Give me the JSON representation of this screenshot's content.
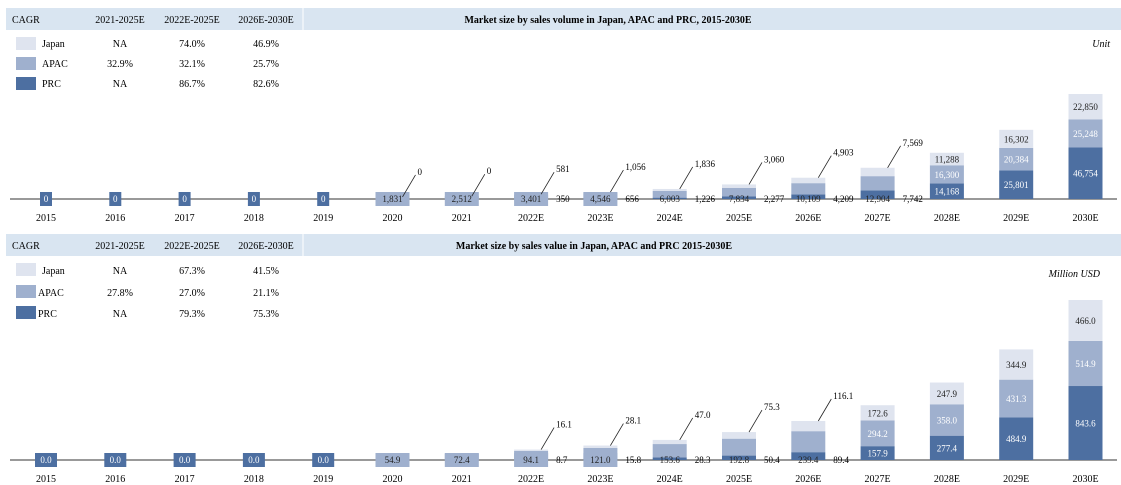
{
  "colors": {
    "japan": "#dfe4ef",
    "apac": "#9fb0ce",
    "prc": "#4d6fa1",
    "header_bg": "#d9e5f1"
  },
  "chart_data": [
    {
      "type": "bar",
      "stacked": true,
      "title": "Market size by sales volume in Japan, APAC and PRC, 2015-2030E",
      "unit": "Unit",
      "categories": [
        "2015",
        "2016",
        "2017",
        "2018",
        "2019",
        "2020",
        "2021",
        "2022E",
        "2023E",
        "2024E",
        "2025E",
        "2026E",
        "2027E",
        "2028E",
        "2029E",
        "2030E"
      ],
      "series": [
        {
          "name": "PRC",
          "values": [
            0,
            0,
            0,
            0,
            0,
            0,
            0,
            350,
            656,
            1226,
            2277,
            4209,
            7742,
            14168,
            25801,
            46754
          ]
        },
        {
          "name": "APAC",
          "values": [
            0,
            0,
            0,
            0,
            0,
            1831,
            2512,
            3401,
            4546,
            6003,
            7834,
            10109,
            12904,
            16300,
            20384,
            25248
          ]
        },
        {
          "name": "Japan",
          "values": [
            0,
            0,
            0,
            0,
            0,
            0,
            0,
            581,
            1056,
            1836,
            3060,
            4903,
            7569,
            11288,
            16302,
            22850
          ]
        }
      ],
      "labels": {
        "PRC": [
          "0",
          "0",
          "0",
          "0",
          "0",
          "",
          "",
          "350",
          "656",
          "1,226",
          "2,277",
          "4,209",
          "7,742",
          "14,168",
          "25,801",
          "46,754"
        ],
        "APAC": [
          "",
          "",
          "",
          "",
          "",
          "1,831",
          "2,512",
          "3,401",
          "4,546",
          "6,003",
          "7,834",
          "10,109",
          "12,904",
          "16,300",
          "20,384",
          "25,248"
        ],
        "Japan": [
          "",
          "",
          "",
          "",
          "",
          "0",
          "0",
          "581",
          "1,056",
          "1,836",
          "3,060",
          "4,903",
          "7,569",
          "11,288",
          "16,302",
          "22,850"
        ]
      },
      "labels_small_prc": [
        "",
        "",
        "",
        "",
        "",
        "0",
        "0",
        "",
        "",
        "",
        "",
        "",
        "",
        "",
        "",
        ""
      ],
      "cagr": {
        "header": [
          "CAGR",
          "2021-2025E",
          "2022E-2025E",
          "2026E-2030E"
        ],
        "rows": [
          {
            "name": "Japan",
            "values": [
              "NA",
              "74.0%",
              "46.9%"
            ]
          },
          {
            "name": "APAC",
            "values": [
              "32.9%",
              "32.1%",
              "25.7%"
            ]
          },
          {
            "name": "PRC",
            "values": [
              "NA",
              "86.7%",
              "82.6%"
            ]
          }
        ]
      }
    },
    {
      "type": "bar",
      "stacked": true,
      "title": "Market size by sales value in Japan, APAC and PRC 2015-2030E",
      "unit": "Million USD",
      "categories": [
        "2015",
        "2016",
        "2017",
        "2018",
        "2019",
        "2020",
        "2021",
        "2022E",
        "2023E",
        "2024E",
        "2025E",
        "2026E",
        "2027E",
        "2028E",
        "2029E",
        "2030E"
      ],
      "series": [
        {
          "name": "PRC",
          "values": [
            0,
            0,
            0,
            0,
            0,
            0,
            0,
            8.7,
            15.8,
            28.3,
            50.4,
            89.4,
            157.9,
            277.4,
            484.9,
            843.6
          ]
        },
        {
          "name": "APAC",
          "values": [
            0,
            0,
            0,
            0,
            0,
            54.9,
            72.4,
            94.1,
            121.0,
            153.6,
            192.8,
            239.4,
            294.2,
            358.0,
            431.3,
            514.9
          ]
        },
        {
          "name": "Japan",
          "values": [
            0,
            0,
            0,
            0,
            0,
            0,
            0,
            16.1,
            28.1,
            47.0,
            75.3,
            116.1,
            172.6,
            247.9,
            344.9,
            466.0
          ]
        }
      ],
      "labels": {
        "PRC": [
          "0.0",
          "0.0",
          "0.0",
          "0.0",
          "0.0",
          "",
          "",
          "8.7",
          "15.8",
          "28.3",
          "50.4",
          "89.4",
          "157.9",
          "277.4",
          "484.9",
          "843.6"
        ],
        "APAC": [
          "",
          "",
          "",
          "",
          "",
          "54.9",
          "72.4",
          "94.1",
          "121.0",
          "153.6",
          "192.8",
          "239.4",
          "294.2",
          "358.0",
          "431.3",
          "514.9"
        ],
        "Japan": [
          "",
          "",
          "",
          "",
          "",
          "",
          "",
          "16.1",
          "28.1",
          "47.0",
          "75.3",
          "116.1",
          "172.6",
          "247.9",
          "344.9",
          "466.0"
        ]
      },
      "cagr": {
        "header": [
          "CAGR",
          "2021-2025E",
          "2022E-2025E",
          "2026E-2030E"
        ],
        "rows": [
          {
            "name": "Japan",
            "values": [
              "NA",
              "67.3%",
              "41.5%"
            ]
          },
          {
            "name": "APAC",
            "values": [
              "27.8%",
              "27.0%",
              "21.1%"
            ]
          },
          {
            "name": "PRC",
            "values": [
              "NA",
              "79.3%",
              "75.3%"
            ]
          }
        ]
      }
    }
  ]
}
